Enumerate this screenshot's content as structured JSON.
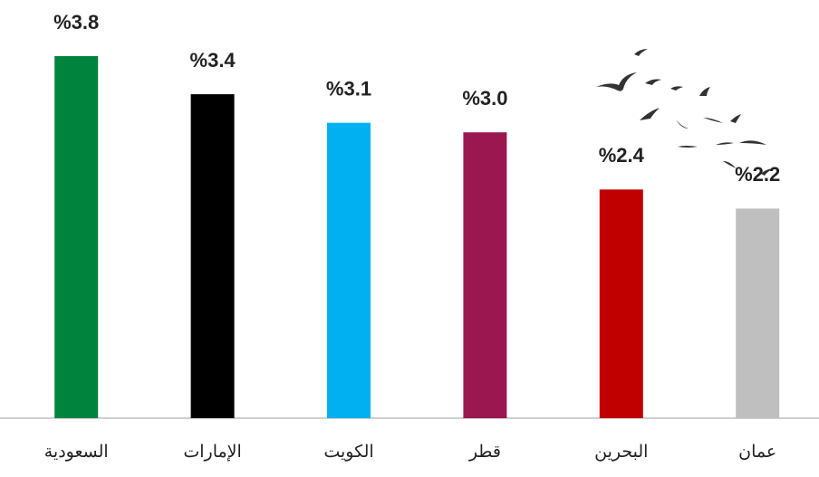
{
  "chart_data": {
    "type": "bar",
    "categories": [
      "السعودية",
      "الإمارات",
      "الكويت",
      "قطر",
      "البحرين",
      "عمان"
    ],
    "values": [
      3.8,
      3.4,
      3.1,
      3.0,
      2.4,
      2.2
    ],
    "value_labels": [
      "%3.8",
      "%3.4",
      "%3.1",
      "%3.0",
      "%2.4",
      "%2.2"
    ],
    "colors": [
      "#00843d",
      "#000000",
      "#00b0f0",
      "#9b1750",
      "#c00000",
      "#bfbfbf"
    ]
  }
}
